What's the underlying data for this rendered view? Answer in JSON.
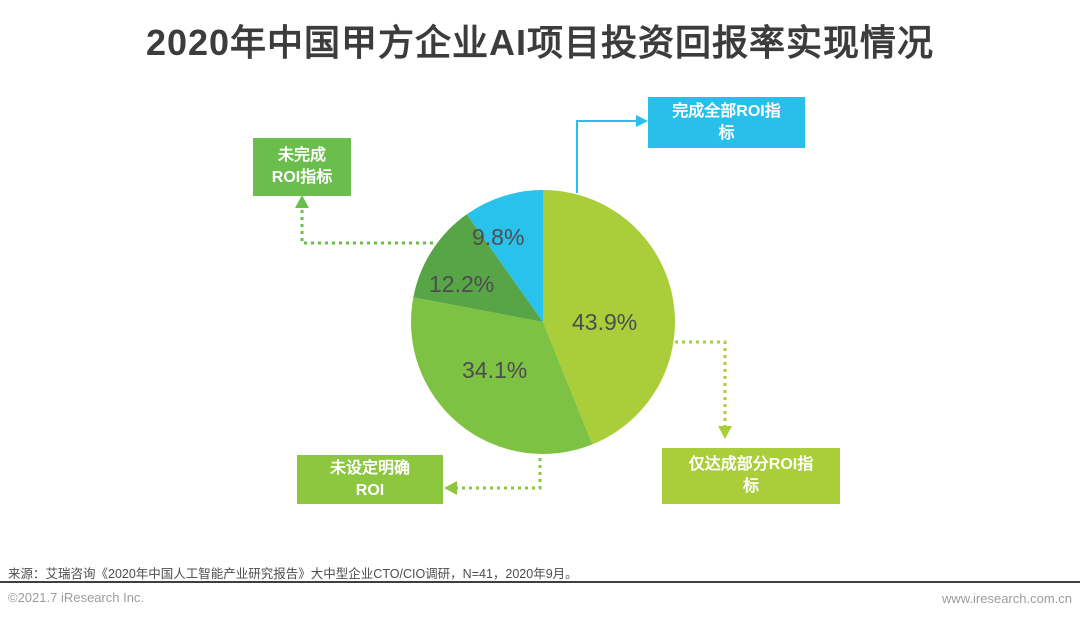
{
  "title": "2020年中国甲方企业AI项目投资回报率实现情况",
  "chart_data": {
    "type": "pie",
    "title": "2020年中国甲方企业AI项目投资回报率实现情况",
    "start_angle_deg": 0,
    "direction": "clockwise",
    "unit": "%",
    "slices": [
      {
        "name": "仅达成部分ROI指标",
        "value": 43.9,
        "label": "43.9%",
        "color": "#a9ce39"
      },
      {
        "name": "未设定明确ROI",
        "value": 34.1,
        "label": "34.1%",
        "color": "#7dc242"
      },
      {
        "name": "未完成ROI指标",
        "value": 12.2,
        "label": "12.2%",
        "color": "#57a546"
      },
      {
        "name": "完成全部ROI指标",
        "value": 9.8,
        "label": "9.8%",
        "color": "#29c2ec"
      }
    ],
    "legend_position": "callout-boxes",
    "grid": false
  },
  "callouts": {
    "completed_all": {
      "label": "完成全部ROI指\n标",
      "color": "#29bfea"
    },
    "not_completed": {
      "label": "未完成\nROI指标",
      "color": "#6cbe4c"
    },
    "no_roi_set": {
      "label": "未设定明确\nROI",
      "color": "#8dc63f"
    },
    "partial": {
      "label": "仅达成部分ROI指\n标",
      "color": "#a9ce39"
    }
  },
  "source_note": "来源：艾瑞咨询《2020年中国人工智能产业研究报告》大中型企业CTO/CIO调研，N=41，2020年9月。",
  "footer": {
    "left": "©2021.7 iResearch Inc.",
    "right": "www.iresearch.com.cn"
  },
  "colors": {
    "title_text": "#3c3c3c",
    "percent_text": "#4d4d4d",
    "footer_text": "#9c9c9c"
  }
}
